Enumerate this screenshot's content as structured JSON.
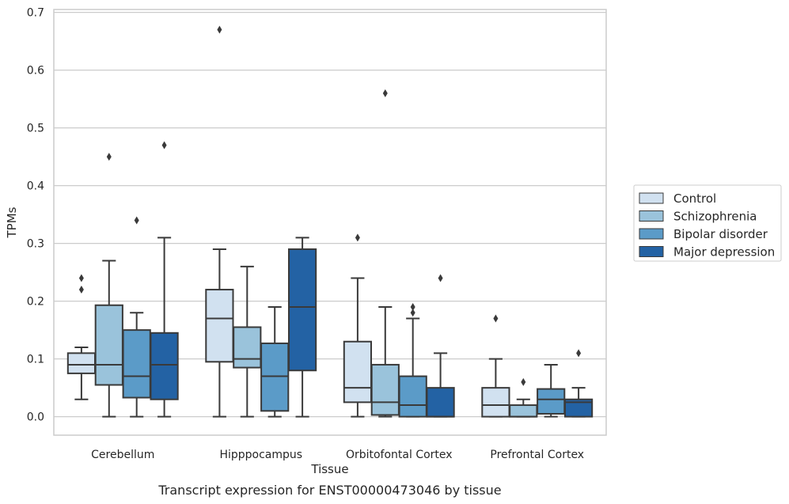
{
  "chart_data": {
    "type": "boxplot",
    "caption": "Transcript expression for ENST00000473046 by tissue",
    "xlabel": "Tissue",
    "ylabel": "TPMs",
    "ylim": [
      -0.032,
      0.705
    ],
    "yticks": [
      0.0,
      0.1,
      0.2,
      0.3,
      0.4,
      0.5,
      0.6,
      0.7
    ],
    "ytick_labels": [
      "0.0",
      "0.1",
      "0.2",
      "0.3",
      "0.4",
      "0.5",
      "0.6",
      "0.7"
    ],
    "grid": "horizontal",
    "legend_position": "right",
    "categories": [
      "Cerebellum",
      "Hipppocampus",
      "Orbitofontal Cortex",
      "Prefrontal Cortex"
    ],
    "series": [
      {
        "name": "Control",
        "color": "#d1e1f0",
        "boxes": [
          {
            "whislo": 0.03,
            "q1": 0.075,
            "med": 0.09,
            "q3": 0.11,
            "whishi": 0.12,
            "fliers": [
              0.22,
              0.24
            ]
          },
          {
            "whislo": 0.0,
            "q1": 0.095,
            "med": 0.17,
            "q3": 0.22,
            "whishi": 0.29,
            "fliers": [
              0.67
            ]
          },
          {
            "whislo": 0.0,
            "q1": 0.025,
            "med": 0.05,
            "q3": 0.13,
            "whishi": 0.24,
            "fliers": [
              0.31
            ]
          },
          {
            "whislo": 0.0,
            "q1": 0.0,
            "med": 0.02,
            "q3": 0.05,
            "whishi": 0.1,
            "fliers": [
              0.17
            ]
          }
        ]
      },
      {
        "name": "Schizophrenia",
        "color": "#9ac3db",
        "boxes": [
          {
            "whislo": 0.0,
            "q1": 0.055,
            "med": 0.09,
            "q3": 0.193,
            "whishi": 0.27,
            "fliers": [
              0.45
            ]
          },
          {
            "whislo": 0.0,
            "q1": 0.085,
            "med": 0.1,
            "q3": 0.155,
            "whishi": 0.26,
            "fliers": []
          },
          {
            "whislo": 0.0,
            "q1": 0.003,
            "med": 0.025,
            "q3": 0.09,
            "whishi": 0.19,
            "fliers": [
              0.56
            ]
          },
          {
            "whislo": 0.0,
            "q1": 0.0,
            "med": 0.0,
            "q3": 0.02,
            "whishi": 0.03,
            "fliers": [
              0.06
            ]
          }
        ]
      },
      {
        "name": "Bipolar disorder",
        "color": "#5b9bc8",
        "boxes": [
          {
            "whislo": 0.0,
            "q1": 0.033,
            "med": 0.07,
            "q3": 0.15,
            "whishi": 0.18,
            "fliers": [
              0.34
            ]
          },
          {
            "whislo": 0.0,
            "q1": 0.01,
            "med": 0.07,
            "q3": 0.127,
            "whishi": 0.19,
            "fliers": []
          },
          {
            "whislo": 0.0,
            "q1": 0.0,
            "med": 0.02,
            "q3": 0.07,
            "whishi": 0.17,
            "fliers": [
              0.18,
              0.19
            ]
          },
          {
            "whislo": 0.0,
            "q1": 0.005,
            "med": 0.03,
            "q3": 0.048,
            "whishi": 0.09,
            "fliers": []
          }
        ]
      },
      {
        "name": "Major depression",
        "color": "#2362a4",
        "boxes": [
          {
            "whislo": 0.0,
            "q1": 0.03,
            "med": 0.09,
            "q3": 0.145,
            "whishi": 0.31,
            "fliers": [
              0.47
            ]
          },
          {
            "whislo": 0.0,
            "q1": 0.08,
            "med": 0.19,
            "q3": 0.29,
            "whishi": 0.31,
            "fliers": []
          },
          {
            "whislo": 0.0,
            "q1": 0.0,
            "med": 0.0,
            "q3": 0.05,
            "whishi": 0.11,
            "fliers": [
              0.24
            ]
          },
          {
            "whislo": 0.0,
            "q1": 0.0,
            "med": 0.025,
            "q3": 0.03,
            "whishi": 0.05,
            "fliers": [
              0.11
            ]
          }
        ]
      }
    ]
  }
}
